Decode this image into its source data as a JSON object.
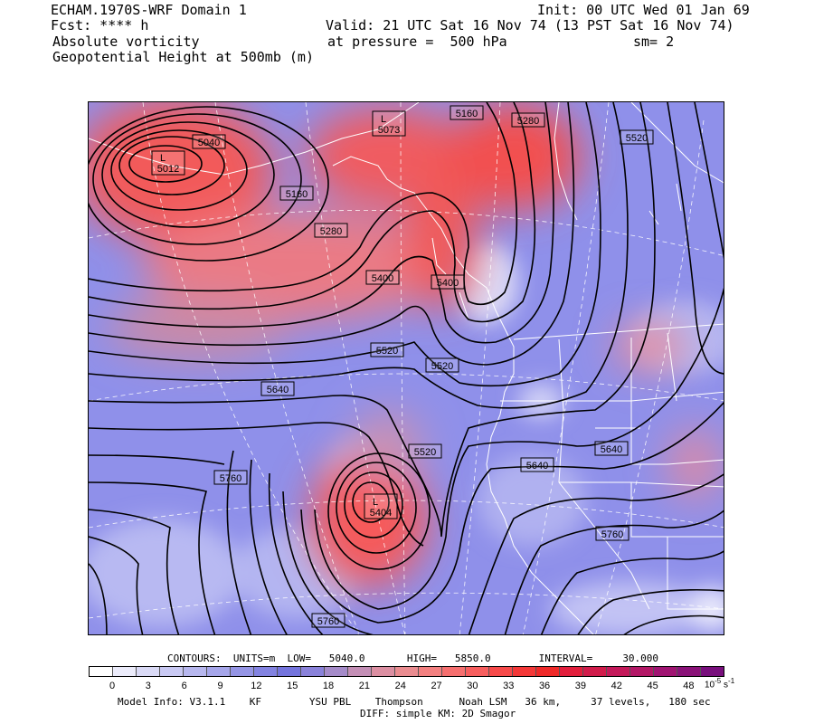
{
  "header": {
    "model": "ECHAM.1970S-WRF Domain 1",
    "init": "Init: 00 UTC Wed 01 Jan 69",
    "fcst": "Fcst: **** h",
    "valid": "Valid: 21 UTC Sat 16 Nov 74 (13 PST Sat 16 Nov 74)",
    "field1": "Absolute vorticity",
    "pressure": "at pressure =  500 hPa",
    "smooth": "sm= 2",
    "field2": "Geopotential Height at 500mb (m)"
  },
  "map": {
    "low_markers": [
      {
        "symbol": "L",
        "value": "5012"
      },
      {
        "symbol": "L",
        "value": "5073"
      },
      {
        "symbol": "L",
        "value": "5404"
      }
    ],
    "contour_labels": [
      "5040",
      "5160",
      "5160",
      "5280",
      "5280",
      "5400",
      "5400",
      "5520",
      "5520",
      "5520",
      "5520",
      "5640",
      "5640",
      "5640",
      "5760",
      "5760",
      "5760"
    ]
  },
  "contours_info": "CONTOURS:  UNITS=m  LOW=   5040.0       HIGH=   5850.0        INTERVAL=     30.000",
  "colorbar": {
    "colors": [
      "#ffffff",
      "#ececfb",
      "#dadaf6",
      "#c9c9f3",
      "#b7b7ee",
      "#a6a6ea",
      "#9595e5",
      "#8383e1",
      "#7474dd",
      "#8a82da",
      "#a58bc9",
      "#c48fb6",
      "#dc8fa2",
      "#ea8c90",
      "#f38080",
      "#f66f6f",
      "#f75e5e",
      "#f74a4a",
      "#f43838",
      "#ef2929",
      "#e21e3c",
      "#d11c4b",
      "#c4195a",
      "#b31766",
      "#a01472",
      "#8a1278",
      "#780f7c"
    ],
    "ticks": [
      "0",
      "3",
      "6",
      "9",
      "12",
      "15",
      "18",
      "21",
      "24",
      "27",
      "30",
      "33",
      "36",
      "39",
      "42",
      "45",
      "48"
    ],
    "unit_base": "10",
    "unit_exp": "-5",
    "unit_suffix": "s",
    "unit_suffix_exp": "-1"
  },
  "model_info": "Model Info: V3.1.1    KF        YSU PBL    Thompson      Noah LSM   36 km,     37 levels,   180 sec",
  "diff_info": "DIFF: simple KM: 2D Smagor"
}
